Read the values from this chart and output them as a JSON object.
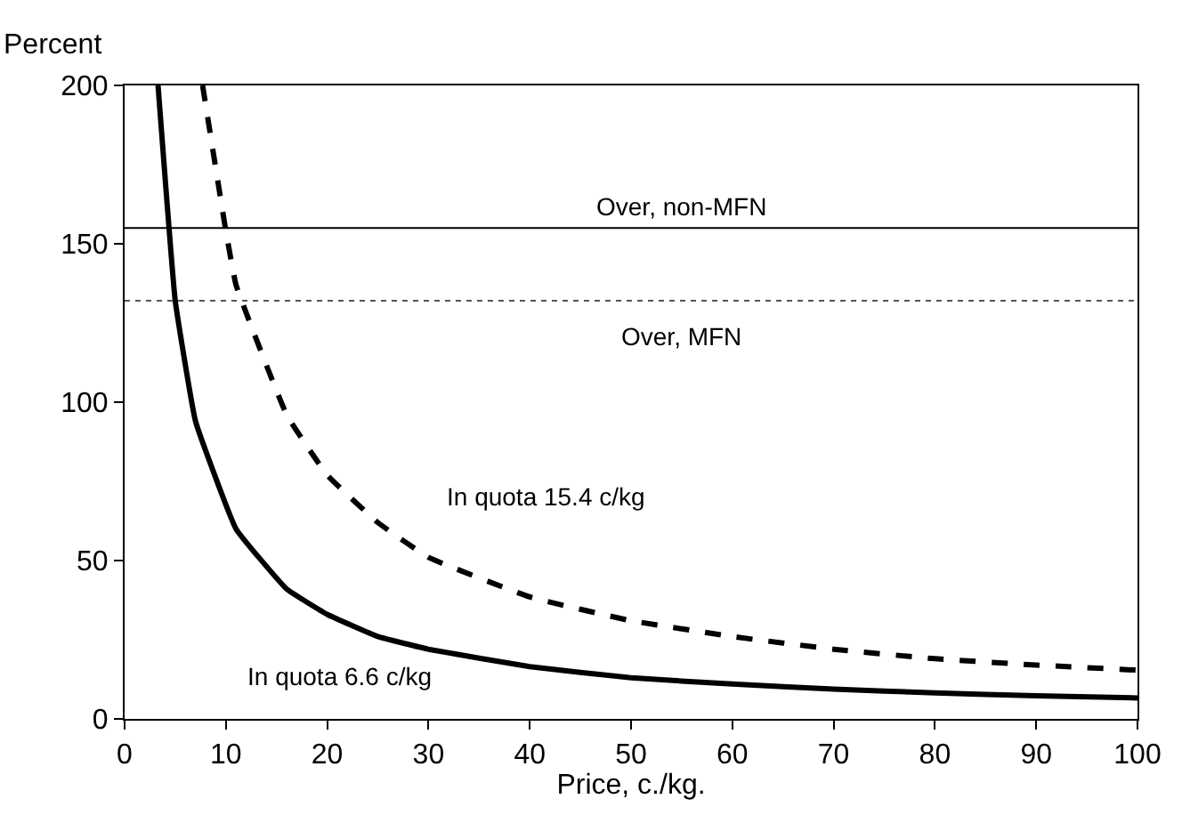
{
  "chart_data": {
    "type": "line",
    "ylabel": "Percent",
    "xlabel": "Price, c./kg.",
    "xlim": [
      0,
      100
    ],
    "xticks": [
      0,
      10,
      20,
      30,
      40,
      50,
      60,
      70,
      80,
      90,
      100
    ],
    "ylim": [
      0,
      200
    ],
    "yticks": [
      0,
      50,
      100,
      150,
      200
    ],
    "series": [
      {
        "color": "#000000",
        "line_style": "solid",
        "x": [
          3.3,
          5,
          7,
          11,
          16,
          20,
          25,
          30,
          40,
          50,
          60,
          70,
          80,
          90,
          100
        ],
        "values": [
          200,
          132,
          94,
          60,
          41,
          33,
          26,
          22,
          16.5,
          13,
          11,
          9.4,
          8.2,
          7.3,
          6.6
        ]
      },
      {
        "color": "#000000",
        "line_style": "dashed",
        "x": [
          7.7,
          10,
          11,
          16,
          20,
          25,
          30,
          40,
          50,
          60,
          70,
          80,
          90,
          100
        ],
        "values": [
          200,
          154,
          137,
          96,
          77,
          62,
          51,
          38.5,
          31,
          26,
          22,
          19,
          17,
          15.4
        ]
      }
    ],
    "ref_lines": [
      {
        "axis": "y",
        "value": 155,
        "label": "Over, non-MFN",
        "color": "#000000",
        "line_style": "solid"
      },
      {
        "axis": "y",
        "value": 132,
        "label": "Over, MFN",
        "color": "#555555",
        "line_style": "dotted"
      }
    ],
    "annotations": [
      "In quota 15.4 c/kg",
      "In quota 6.6 c/kg"
    ],
    "marker": "none"
  }
}
